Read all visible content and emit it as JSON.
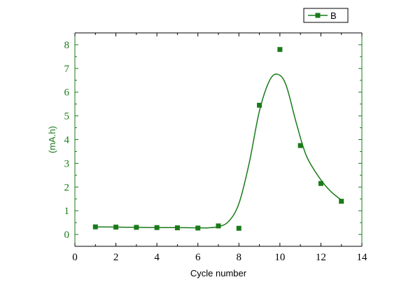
{
  "chart_data": {
    "type": "scatter",
    "title": "",
    "xlabel": "Cycle number",
    "ylabel": "(mA.h)",
    "xlim": [
      0,
      14
    ],
    "ylim": [
      -0.5,
      8.5
    ],
    "xticks": [
      0,
      2,
      4,
      6,
      8,
      10,
      12,
      14
    ],
    "yticks": [
      0,
      1,
      2,
      3,
      4,
      5,
      6,
      7,
      8
    ],
    "grid": false,
    "legend_position": "top-right",
    "colors": {
      "series": "#1a7a1a",
      "x_axis": "#000000",
      "y_axis": "#1a7a1a"
    },
    "series": [
      {
        "name": "B",
        "marker": "square",
        "x": [
          1,
          2,
          3,
          4,
          5,
          6,
          7,
          8,
          9,
          10,
          11,
          12,
          13
        ],
        "y": [
          0.32,
          0.31,
          0.3,
          0.29,
          0.28,
          0.27,
          0.36,
          0.26,
          5.45,
          7.8,
          3.75,
          2.15,
          1.4
        ],
        "fit_curve": {
          "x": [
            1,
            2,
            3,
            4,
            5,
            6,
            6.5,
            7,
            7.5,
            8,
            8.5,
            9,
            9.5,
            9.9,
            10.3,
            10.8,
            11.3,
            12,
            12.5,
            13
          ],
          "y": [
            0.32,
            0.31,
            0.3,
            0.29,
            0.29,
            0.28,
            0.28,
            0.33,
            0.55,
            1.3,
            3.0,
            5.2,
            6.5,
            6.75,
            6.3,
            4.7,
            3.3,
            2.3,
            1.8,
            1.45
          ]
        }
      }
    ]
  }
}
